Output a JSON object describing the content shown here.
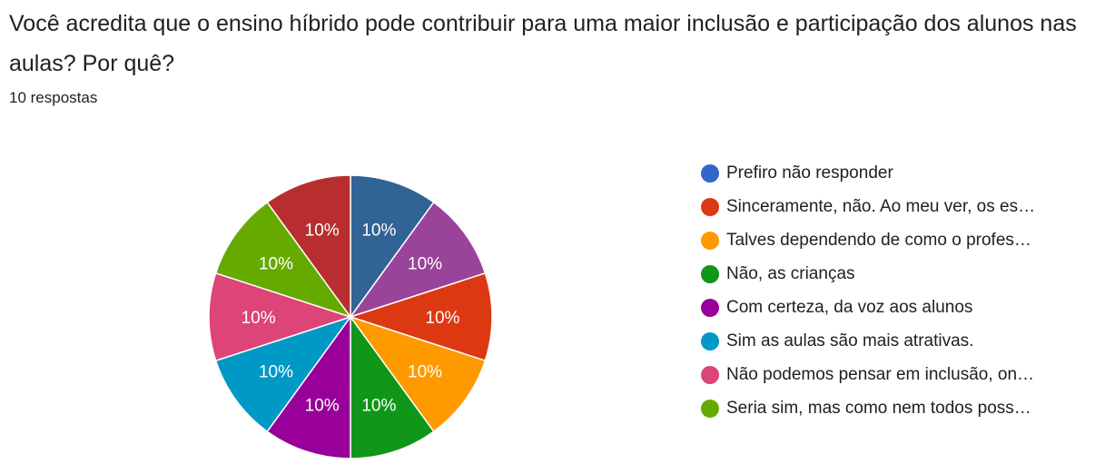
{
  "question": {
    "title": "Você acredita que o ensino híbrido pode contribuir para uma maior inclusão e participação dos alunos nas aulas? Por quê?",
    "responses": "10 respostas"
  },
  "chart_data": {
    "type": "pie",
    "legend_position": "right",
    "categories": [
      "Prefiro não responder",
      "Sinceramente, não. Ao meu ver, os es…",
      "Talves dependendo de como o profes…",
      "Não, as crianças",
      "Com certeza, da voz aos alunos",
      "Sim as aulas são mais atrativas.",
      "Não podemos pensar em inclusão, on…",
      "Seria sim, mas como nem todos poss…"
    ],
    "legend_colors": [
      "#3366cc",
      "#dc3912",
      "#ff9900",
      "#109618",
      "#990099",
      "#0099c6",
      "#dd4477",
      "#66aa00"
    ],
    "slices": [
      {
        "value": 10,
        "label": "10%",
        "color": "#316395"
      },
      {
        "value": 10,
        "label": "10%",
        "color": "#994499"
      },
      {
        "value": 10,
        "label": "10%",
        "color": "#dc3912"
      },
      {
        "value": 10,
        "label": "10%",
        "color": "#ff9900"
      },
      {
        "value": 10,
        "label": "10%",
        "color": "#109618"
      },
      {
        "value": 10,
        "label": "10%",
        "color": "#990099"
      },
      {
        "value": 10,
        "label": "10%",
        "color": "#0099c6"
      },
      {
        "value": 10,
        "label": "10%",
        "color": "#dd4477"
      },
      {
        "value": 10,
        "label": "10%",
        "color": "#66aa00"
      },
      {
        "value": 10,
        "label": "10%",
        "color": "#b82e2e"
      }
    ]
  }
}
